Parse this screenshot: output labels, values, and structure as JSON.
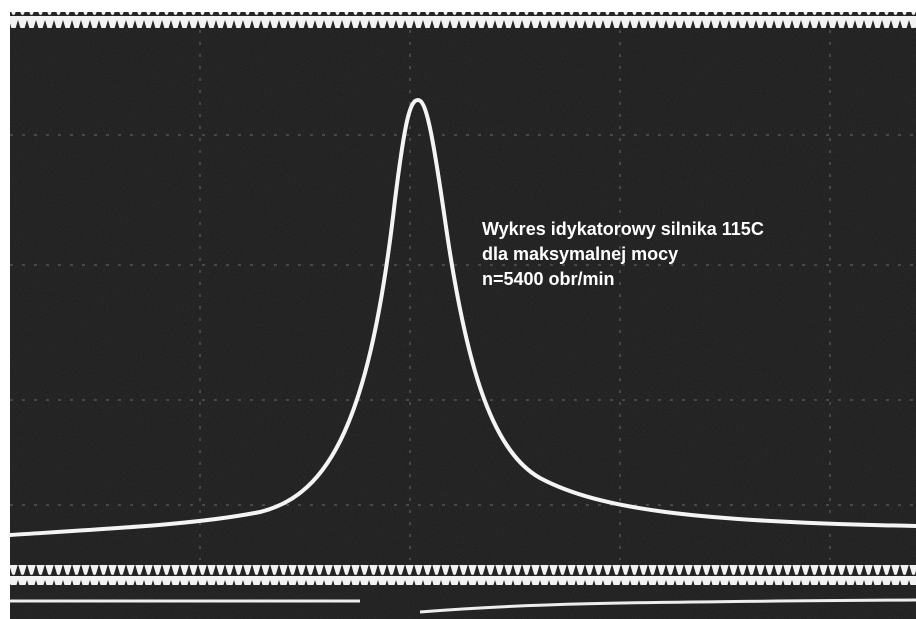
{
  "annotation": {
    "lines": [
      "Wykres idykatorowy silnika 115C",
      "dla maksymalnej mocy",
      "n=5400 obr/min"
    ]
  }
}
